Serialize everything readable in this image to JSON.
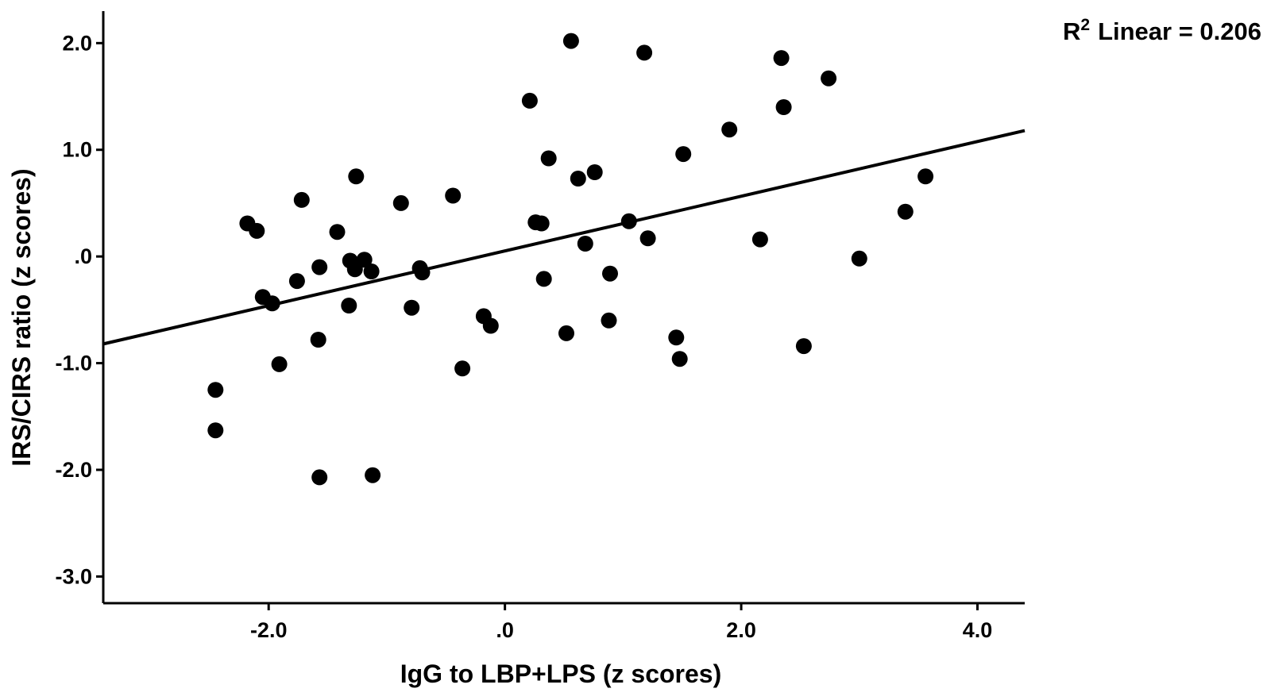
{
  "chart_data": {
    "type": "scatter",
    "xlabel": "IgG to LBP+LPS (z scores)",
    "ylabel": "IRS/CIRS ratio (z scores)",
    "xlim": [
      -3.4,
      4.4
    ],
    "ylim": [
      -3.25,
      2.3
    ],
    "x_ticks": [
      -2.0,
      0.0,
      2.0,
      4.0
    ],
    "x_tick_labels": [
      "-2.0",
      ".0",
      "2.0",
      "4.0"
    ],
    "y_ticks": [
      2.0,
      1.0,
      0.0,
      -1.0,
      -2.0,
      -3.0
    ],
    "y_tick_labels": [
      "2.0",
      "1.0",
      ".0",
      "-1.0",
      "-2.0",
      "-3.0"
    ],
    "grid": false,
    "annotation": {
      "r_label": "R",
      "r_sup": "2",
      "text": "Linear = 0.206"
    },
    "fit_line": {
      "type": "linear",
      "x": [
        -3.4,
        4.4
      ],
      "y": [
        -0.82,
        1.18
      ]
    },
    "colors": {
      "points": "#000000",
      "line": "#000000",
      "axes": "#000000",
      "background": "#ffffff"
    },
    "points": [
      {
        "x": -2.45,
        "y": -1.25
      },
      {
        "x": -2.45,
        "y": -1.63
      },
      {
        "x": -2.18,
        "y": 0.31
      },
      {
        "x": -2.1,
        "y": 0.24
      },
      {
        "x": -2.05,
        "y": -0.38
      },
      {
        "x": -1.97,
        "y": -0.44
      },
      {
        "x": -1.91,
        "y": -1.01
      },
      {
        "x": -1.76,
        "y": -0.23
      },
      {
        "x": -1.72,
        "y": 0.53
      },
      {
        "x": -1.57,
        "y": -0.1
      },
      {
        "x": -1.58,
        "y": -0.78
      },
      {
        "x": -1.57,
        "y": -2.07
      },
      {
        "x": -1.42,
        "y": 0.23
      },
      {
        "x": -1.31,
        "y": -0.04
      },
      {
        "x": -1.32,
        "y": -0.46
      },
      {
        "x": -1.27,
        "y": -0.12
      },
      {
        "x": -1.26,
        "y": 0.75
      },
      {
        "x": -1.19,
        "y": -0.03
      },
      {
        "x": -1.13,
        "y": -0.14
      },
      {
        "x": -1.12,
        "y": -2.05
      },
      {
        "x": -0.88,
        "y": 0.5
      },
      {
        "x": -0.79,
        "y": -0.48
      },
      {
        "x": -0.72,
        "y": -0.11
      },
      {
        "x": -0.7,
        "y": -0.15
      },
      {
        "x": -0.44,
        "y": 0.57
      },
      {
        "x": -0.36,
        "y": -1.05
      },
      {
        "x": -0.18,
        "y": -0.56
      },
      {
        "x": -0.12,
        "y": -0.65
      },
      {
        "x": 0.21,
        "y": 1.46
      },
      {
        "x": 0.26,
        "y": 0.32
      },
      {
        "x": 0.31,
        "y": 0.31
      },
      {
        "x": 0.33,
        "y": -0.21
      },
      {
        "x": 0.37,
        "y": 0.92
      },
      {
        "x": 0.52,
        "y": -0.72
      },
      {
        "x": 0.56,
        "y": 2.02
      },
      {
        "x": 0.62,
        "y": 0.73
      },
      {
        "x": 0.68,
        "y": 0.12
      },
      {
        "x": 0.76,
        "y": 0.79
      },
      {
        "x": 0.88,
        "y": -0.6
      },
      {
        "x": 0.89,
        "y": -0.16
      },
      {
        "x": 1.05,
        "y": 0.33
      },
      {
        "x": 1.18,
        "y": 1.91
      },
      {
        "x": 1.21,
        "y": 0.17
      },
      {
        "x": 1.45,
        "y": -0.76
      },
      {
        "x": 1.48,
        "y": -0.96
      },
      {
        "x": 1.51,
        "y": 0.96
      },
      {
        "x": 1.9,
        "y": 1.19
      },
      {
        "x": 2.16,
        "y": 0.16
      },
      {
        "x": 2.34,
        "y": 1.86
      },
      {
        "x": 2.36,
        "y": 1.4
      },
      {
        "x": 2.53,
        "y": -0.84
      },
      {
        "x": 2.74,
        "y": 1.67
      },
      {
        "x": 3.0,
        "y": -0.02
      },
      {
        "x": 3.39,
        "y": 0.42
      },
      {
        "x": 3.56,
        "y": 0.75
      }
    ]
  }
}
